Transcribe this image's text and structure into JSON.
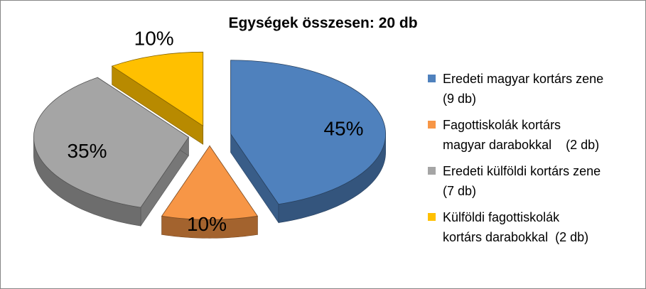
{
  "chart_data": {
    "type": "pie",
    "title": "Egységek összesen: 20 db",
    "series": [
      {
        "values": [
          45,
          10,
          35,
          10
        ],
        "labels": [
          "45%",
          "10%",
          "35%",
          "10%"
        ],
        "colors": [
          "#4F81BD",
          "#F79646",
          "#A5A5A5",
          "#FFC000"
        ]
      }
    ],
    "legend": {
      "position": "right",
      "entries": [
        {
          "lines": [
            "Eredeti magyar kortárs zene",
            "(9 db)"
          ]
        },
        {
          "lines": [
            "Fagottiskolák kortárs",
            "magyar darabokkal    (2 db)"
          ]
        },
        {
          "lines": [
            "Eredeti külföldi kortárs zene",
            "(7 db)"
          ]
        },
        {
          "lines": [
            "Külföldi fagottiskolák",
            "kortárs darabokkal  (2 db)"
          ]
        }
      ]
    },
    "exploded": true,
    "style": "3d"
  }
}
